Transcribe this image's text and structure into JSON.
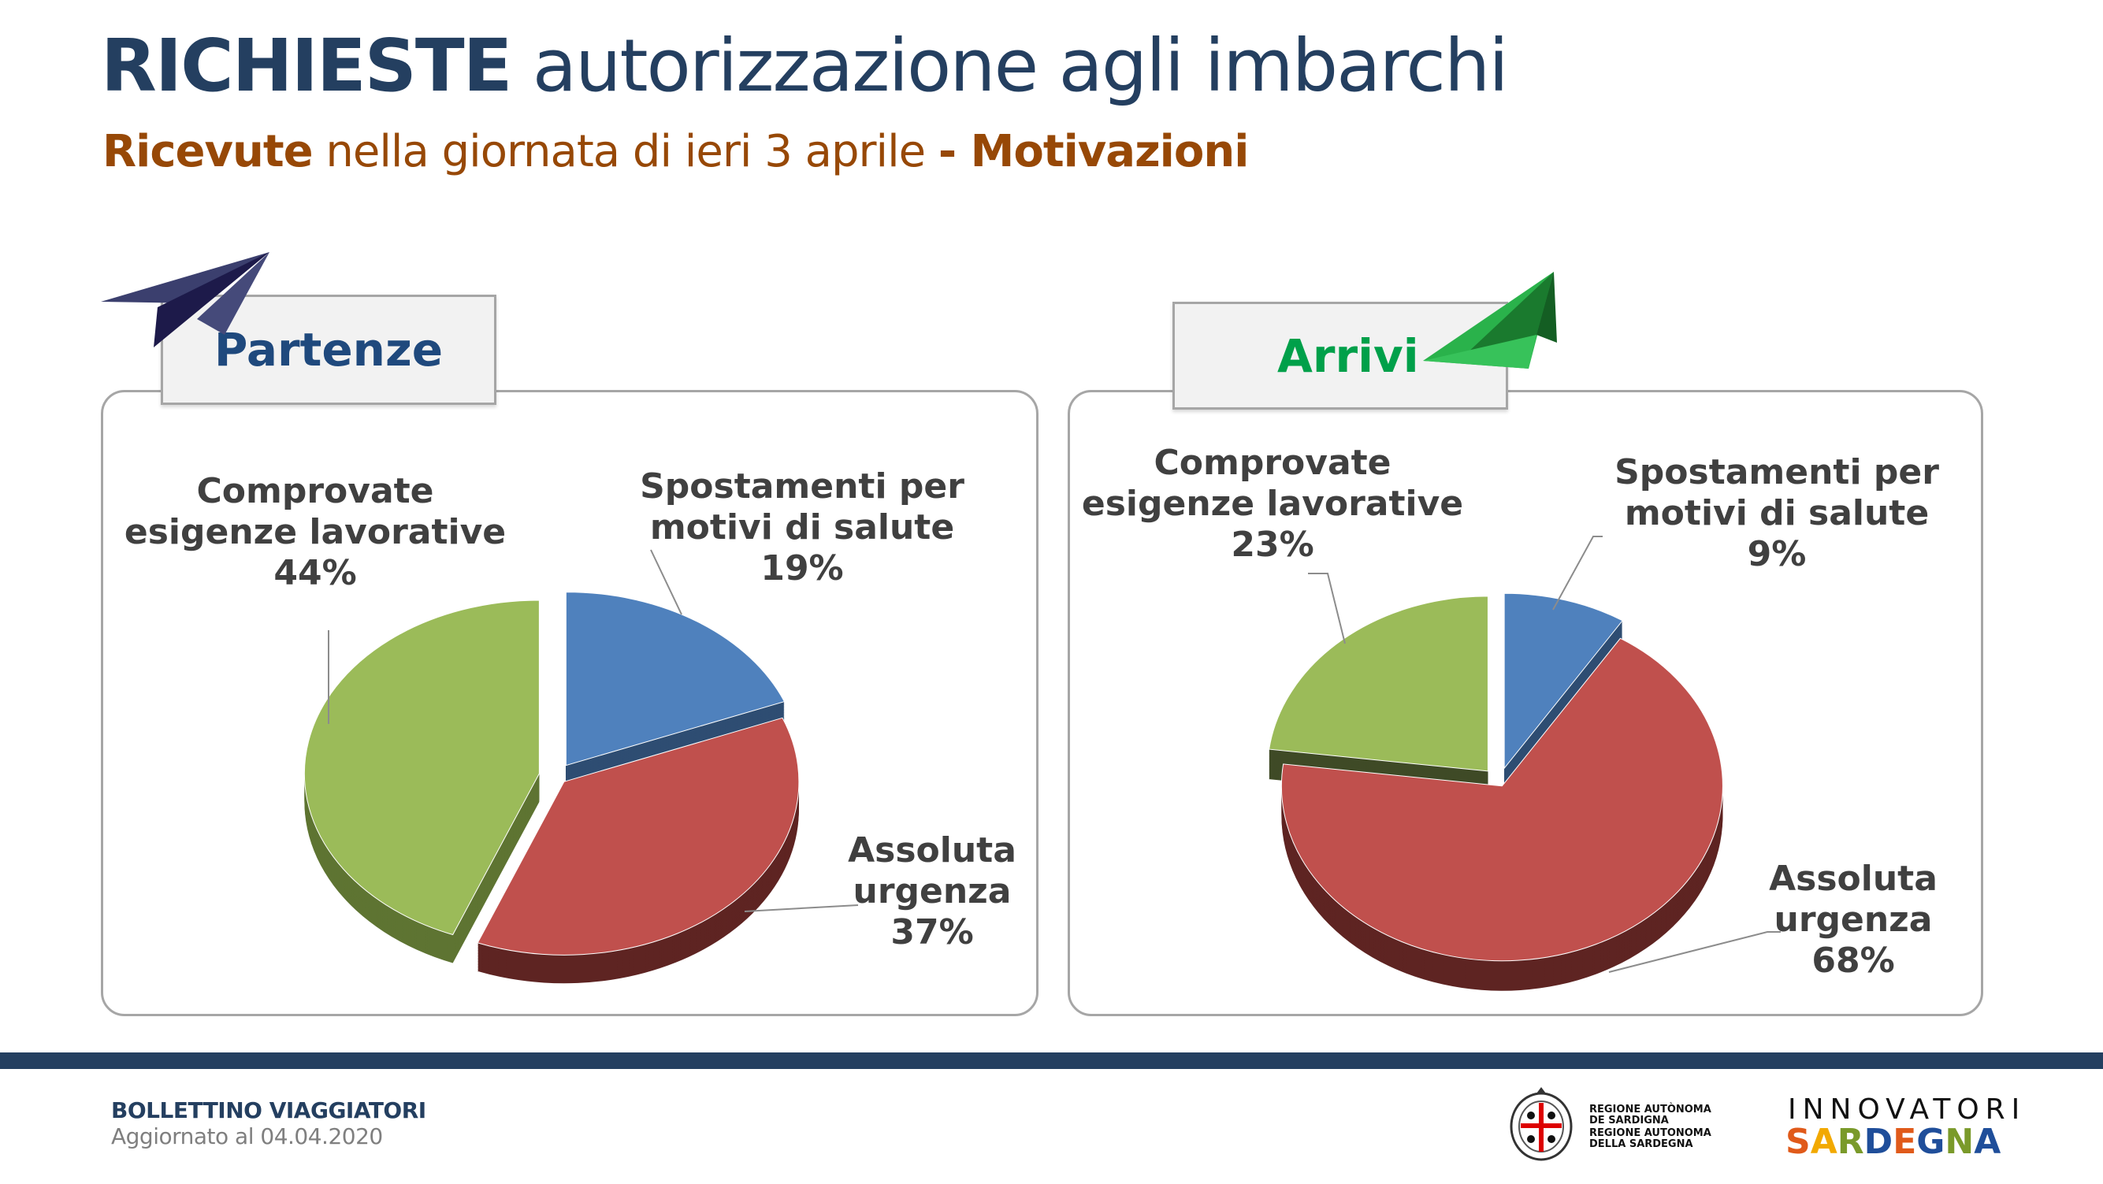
{
  "header": {
    "title_bold": "RICHIESTE",
    "title_rest": " autorizzazione agli imbarchi",
    "subtitle_bold1": "Ricevute",
    "subtitle_mid": " nella giornata di ieri 3 aprile ",
    "subtitle_bold2": "- Motivazioni"
  },
  "chart_data": [
    {
      "type": "pie",
      "title": "Partenze",
      "categories": [
        "Spostamenti per motivi di salute",
        "Assoluta urgenza",
        "Comprovate esigenze lavorative"
      ],
      "values": [
        19,
        37,
        44
      ],
      "colors": [
        "#4f81bd",
        "#c0504d",
        "#9bbb59"
      ],
      "side_colors": [
        "#2e4d72",
        "#5e2422",
        "#5e7432"
      ],
      "labels": [
        {
          "line1": "Spostamenti per",
          "line2": "motivi di salute",
          "pct": "19%"
        },
        {
          "line1": "Assoluta",
          "line2": "urgenza",
          "pct": "37%"
        },
        {
          "line1": "Comprovate",
          "line2": "esigenze lavorative",
          "pct": "44%"
        }
      ]
    },
    {
      "type": "pie",
      "title": "Arrivi",
      "categories": [
        "Spostamenti per motivi di salute",
        "Assoluta urgenza",
        "Comprovate esigenze lavorative"
      ],
      "values": [
        9,
        68,
        23
      ],
      "colors": [
        "#4f81bd",
        "#c0504d",
        "#9bbb59"
      ],
      "side_colors": [
        "#2e4d72",
        "#5e2422",
        "#3f4a26"
      ],
      "labels": [
        {
          "line1": "Spostamenti per",
          "line2": "motivi di salute",
          "pct": "9%"
        },
        {
          "line1": "Assoluta",
          "line2": "urgenza",
          "pct": "68%"
        },
        {
          "line1": "Comprovate",
          "line2": "esigenze lavorative",
          "pct": "23%"
        }
      ]
    }
  ],
  "colors": {
    "partenze": "#1f497d",
    "arrivi": "#00a04a",
    "navy": "#243f60",
    "brown": "#974806"
  },
  "footer": {
    "bulletin": "BOLLETTINO VIAGGIATORI",
    "updated": "Aggiornato al 04.04.2020",
    "region_line1": "REGIONE AUTÒNOMA",
    "region_line2": "DE SARDIGNA",
    "region_line3": "REGIONE AUTONOMA",
    "region_line4": "DELLA SARDEGNA",
    "brand_top": "INNOVATORI",
    "brand_bottom": "SARDEGNA"
  }
}
